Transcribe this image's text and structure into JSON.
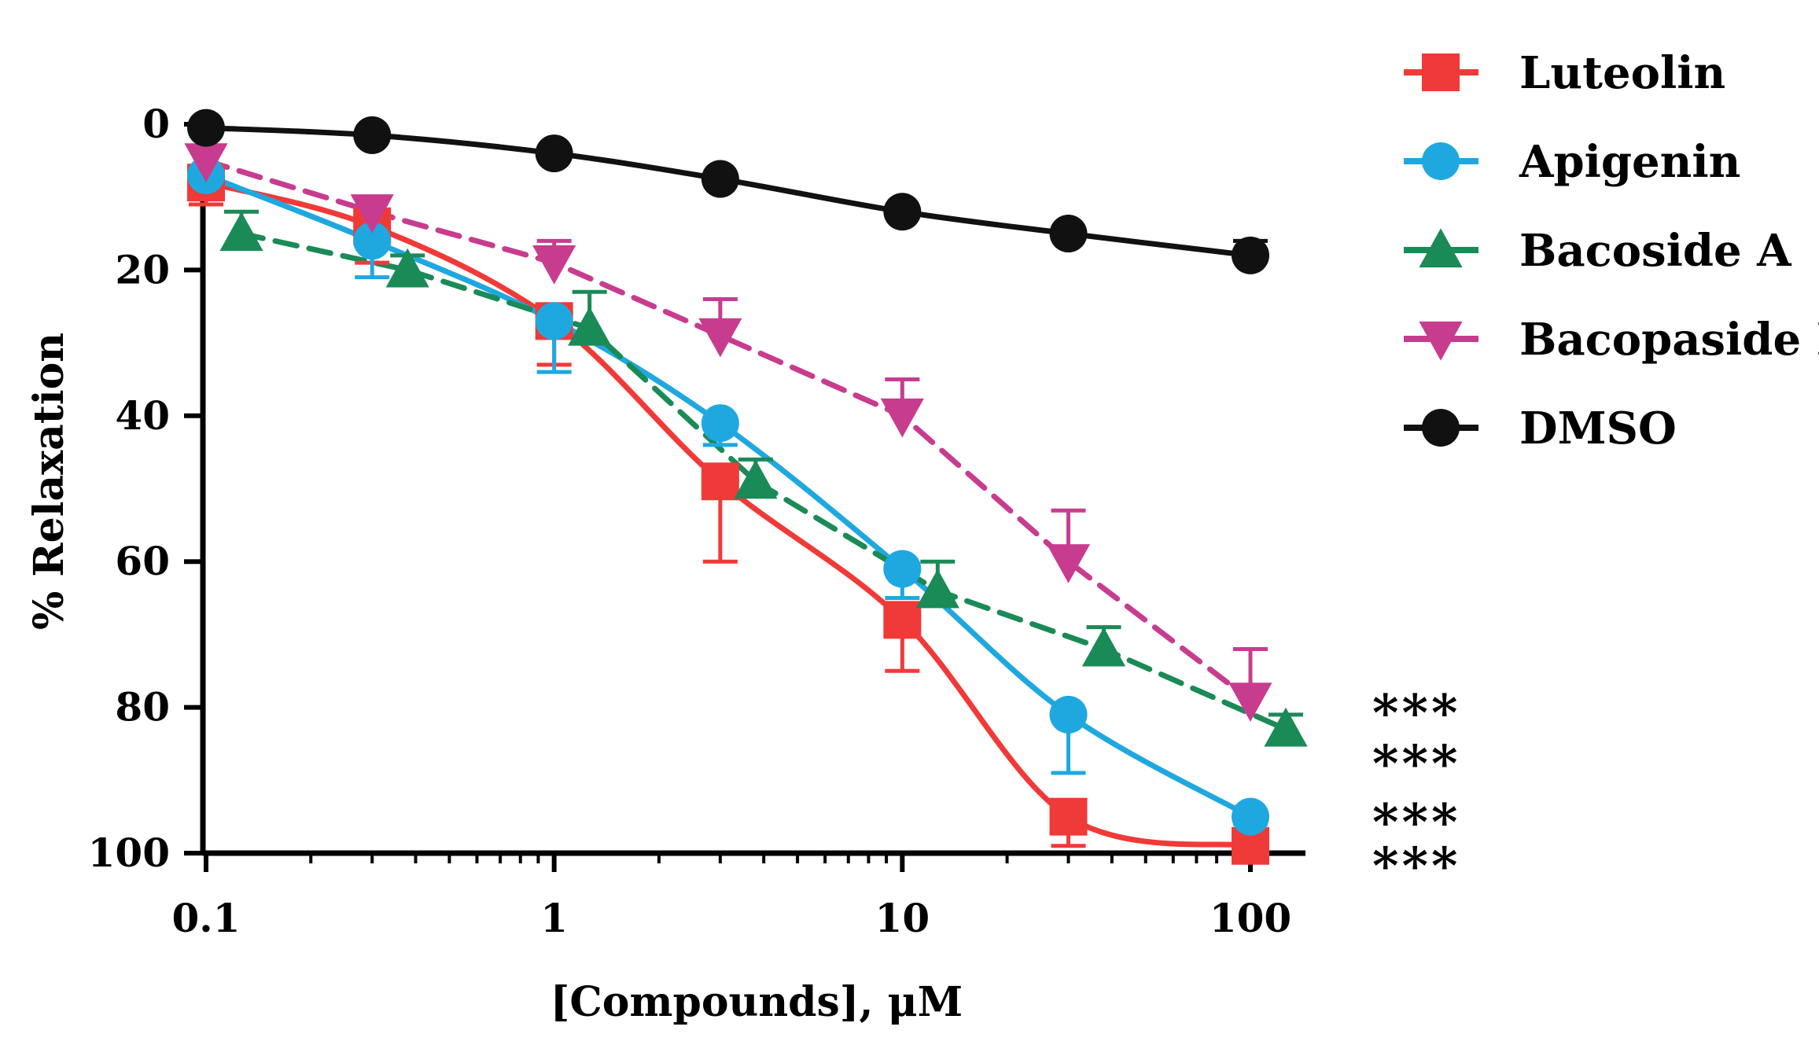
{
  "chart_data": {
    "type": "line",
    "xlabel": "[Compounds], μM",
    "ylabel": "% Relaxation",
    "x_scale": "log",
    "xlim": [
      0.1,
      100
    ],
    "ylim": [
      0,
      100
    ],
    "y_inverted": true,
    "x_ticks": [
      0.1,
      1,
      10,
      100
    ],
    "x_tick_labels": [
      "0.1",
      "1",
      "10",
      "100"
    ],
    "y_ticks": [
      0,
      20,
      40,
      60,
      80,
      100
    ],
    "y_tick_labels": [
      "0",
      "20",
      "40",
      "60",
      "80",
      "100"
    ],
    "grid": false,
    "legend_position": "top-right",
    "series": [
      {
        "name": "Luteolin",
        "color": "#f03a38",
        "marker": "square",
        "line_style": "solid",
        "x": [
          0.1,
          0.3,
          1,
          3,
          10,
          30,
          100
        ],
        "y": [
          8,
          14,
          27,
          49,
          68,
          95,
          99
        ],
        "error": [
          3,
          5,
          6,
          11,
          7,
          4,
          1
        ]
      },
      {
        "name": "Apigenin",
        "color": "#1fa8e0",
        "marker": "circle",
        "line_style": "solid",
        "x": [
          0.1,
          0.3,
          1,
          3,
          10,
          30,
          100
        ],
        "y": [
          7,
          16,
          27,
          41,
          61,
          81,
          95
        ],
        "error": [
          2,
          5,
          7,
          3,
          4,
          8,
          1
        ]
      },
      {
        "name": "Bacoside A",
        "color": "#1a8a57",
        "marker": "triangle-up",
        "line_style": "dashed",
        "x": [
          0.1,
          0.3,
          1,
          3,
          10,
          30,
          100
        ],
        "y": [
          15,
          20,
          28,
          49,
          64,
          72,
          83
        ],
        "error": [
          3,
          2,
          5,
          3,
          4,
          3,
          2
        ]
      },
      {
        "name": "Bacopaside I",
        "color": "#c83c8f",
        "marker": "triangle-down",
        "line_style": "dashed",
        "x": [
          0.1,
          0.3,
          1,
          3,
          10,
          30,
          100
        ],
        "y": [
          5,
          12,
          19,
          29,
          40,
          60,
          79
        ],
        "error": [
          2,
          2,
          3,
          5,
          5,
          7,
          7
        ]
      },
      {
        "name": "DMSO",
        "color": "#111111",
        "marker": "circle",
        "line_style": "solid",
        "x": [
          0.1,
          0.3,
          1,
          3,
          10,
          30,
          100
        ],
        "y": [
          0.5,
          1.5,
          4,
          7.5,
          12,
          15,
          18
        ],
        "error": [
          0,
          0,
          0,
          0,
          0,
          0,
          2
        ]
      }
    ],
    "annotations": [
      {
        "text": "***",
        "y": 79
      },
      {
        "text": "***",
        "y": 86
      },
      {
        "text": "***",
        "y": 94
      },
      {
        "text": "***",
        "y": 100
      }
    ]
  }
}
